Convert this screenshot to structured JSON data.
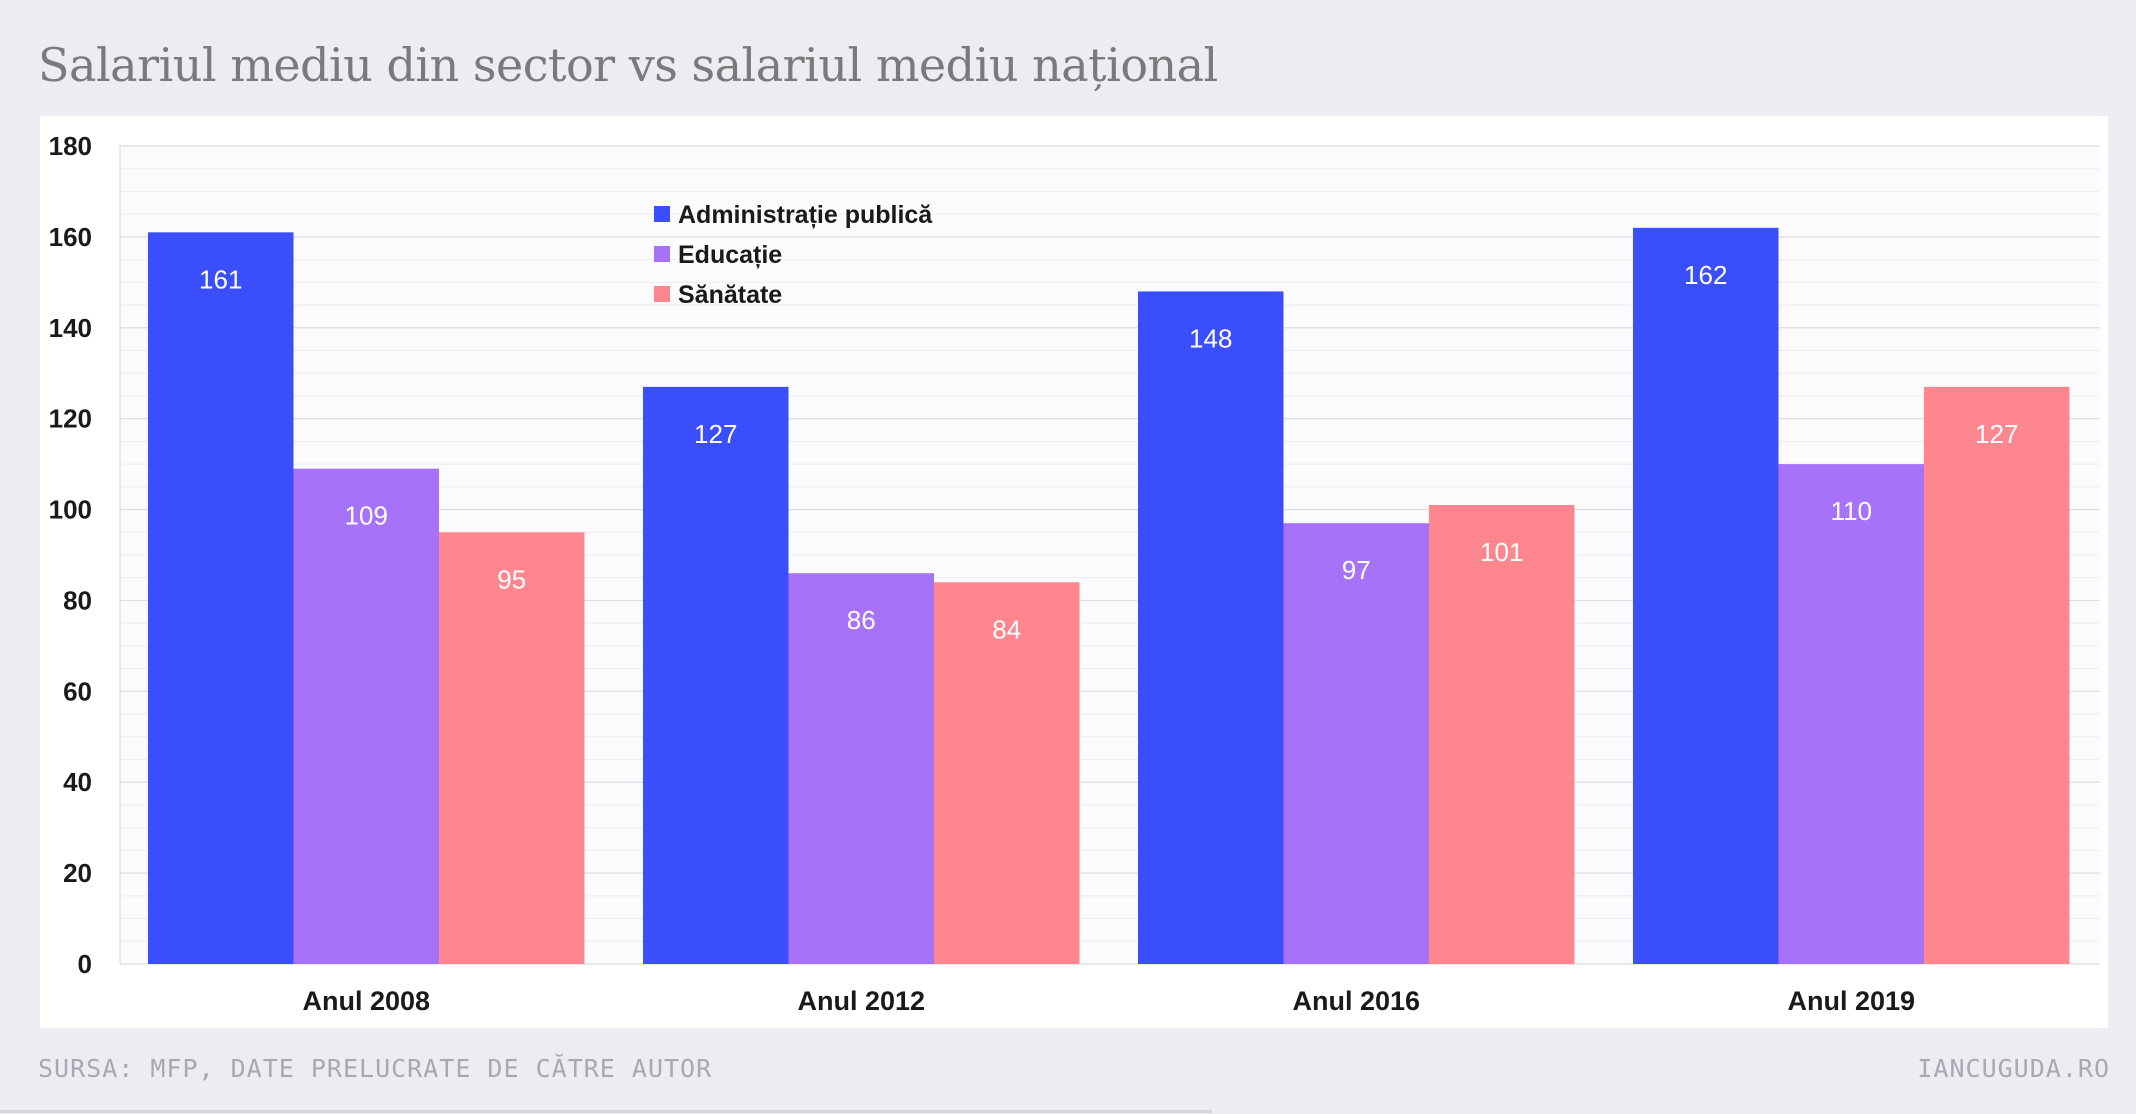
{
  "title": "Salariul mediu din sector vs salariul mediu național",
  "source": "SURSA: MFP, DATE PRELUCRATE DE CĂTRE AUTOR",
  "brand": "IANCUGUDA.RO",
  "colors": {
    "administratie": "#3a4ffb",
    "educatie": "#a673f8",
    "sanatate": "#fe868e",
    "background": "#ececf3",
    "panel": "#ffffff"
  },
  "chart_data": {
    "type": "bar",
    "categories": [
      "Anul 2008",
      "Anul 2012",
      "Anul 2016",
      "Anul 2019"
    ],
    "series": [
      {
        "name": "Administrație publică",
        "values": [
          161,
          127,
          148,
          162
        ],
        "color": "#3a4ffb"
      },
      {
        "name": "Educație",
        "values": [
          109,
          86,
          97,
          110
        ],
        "color": "#a673f8"
      },
      {
        "name": "Sănătate",
        "values": [
          95,
          84,
          101,
          127
        ],
        "color": "#fe868e"
      }
    ],
    "ylim": [
      0,
      180
    ],
    "yticks": [
      0,
      20,
      40,
      60,
      80,
      100,
      120,
      140,
      160,
      180
    ],
    "grid": true,
    "legend_position": "top-center-left",
    "data_labels": true
  }
}
